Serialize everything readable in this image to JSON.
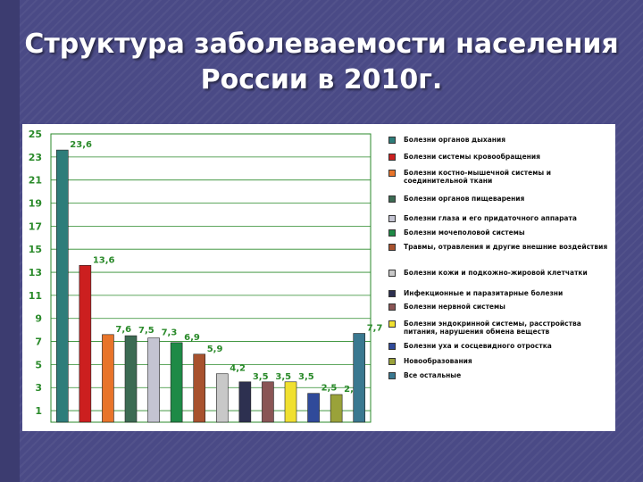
{
  "page": {
    "title_line1": "Структура заболеваемости населения",
    "title_line2": "России в 2010г."
  },
  "chart_data": {
    "type": "bar",
    "title": "Структура заболеваемости населения России в 2010г.",
    "xlabel": "",
    "ylabel": "",
    "ylim": [
      0,
      25
    ],
    "yticks": [
      1,
      3,
      5,
      7,
      9,
      11,
      13,
      15,
      17,
      19,
      21,
      23,
      25
    ],
    "grid": true,
    "legend_position": "right",
    "series": [
      {
        "name": "Болезни органов дыхания",
        "value": 23.6,
        "label": "23,6",
        "color": "#2e7d7a"
      },
      {
        "name": "Болезни системы кровообращения",
        "value": 13.6,
        "label": "13,6",
        "color": "#cc1f1f"
      },
      {
        "name": "Болезни костно-мышечной системы и соединительной ткани",
        "value": 7.6,
        "label": "7,6",
        "color": "#e8742a"
      },
      {
        "name": "Болезни органов пищеварения",
        "value": 7.5,
        "label": "7,5",
        "color": "#3c6b53"
      },
      {
        "name": "Болезни глаза и его придаточного аппарата",
        "value": 7.3,
        "label": "7,3",
        "color": "#c4c4d2"
      },
      {
        "name": "Болезни мочеполовой системы",
        "value": 6.9,
        "label": "6,9",
        "color": "#1e8a46"
      },
      {
        "name": "Травмы, отравления и другие внешние воздействия",
        "value": 5.9,
        "label": "5,9",
        "color": "#a8522e"
      },
      {
        "name": "Болезни кожи и подкожно-жировой клетчатки",
        "value": 4.2,
        "label": "4,2",
        "color": "#c8c8c8"
      },
      {
        "name": "Инфекционные и паразитарные болезни",
        "value": 3.5,
        "label": "3,5",
        "color": "#2d3050"
      },
      {
        "name": "Болезни нервной системы",
        "value": 3.5,
        "label": "3,5",
        "color": "#8a5555"
      },
      {
        "name": "Болезни эндокринной системы, расстройства питания, нарушения обмена веществ",
        "value": 3.5,
        "label": "3,5",
        "color": "#f0e030"
      },
      {
        "name": "Болезни уха и сосцевидного отростка",
        "value": 2.5,
        "label": "2,5",
        "color": "#304a9a"
      },
      {
        "name": "Новообразования",
        "value": 2.4,
        "label": "2,4",
        "color": "#9aa23a"
      },
      {
        "name": "Все остальные",
        "value": 7.7,
        "label": "7,7",
        "color": "#3a7890"
      }
    ]
  }
}
